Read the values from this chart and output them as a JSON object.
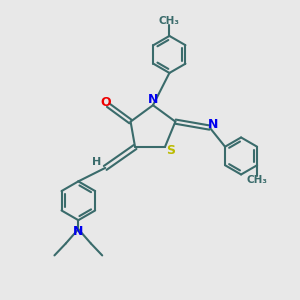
{
  "bg_color": "#e8e8e8",
  "bond_color": "#3a6b6b",
  "atom_colors": {
    "N": "#0000ee",
    "O": "#ee0000",
    "S": "#bbbb00",
    "H": "#3a6b6b",
    "C": "#3a6b6b"
  },
  "line_width": 1.5,
  "figsize": [
    3.0,
    3.0
  ],
  "dpi": 100,
  "xlim": [
    0,
    10
  ],
  "ylim": [
    0,
    10
  ]
}
